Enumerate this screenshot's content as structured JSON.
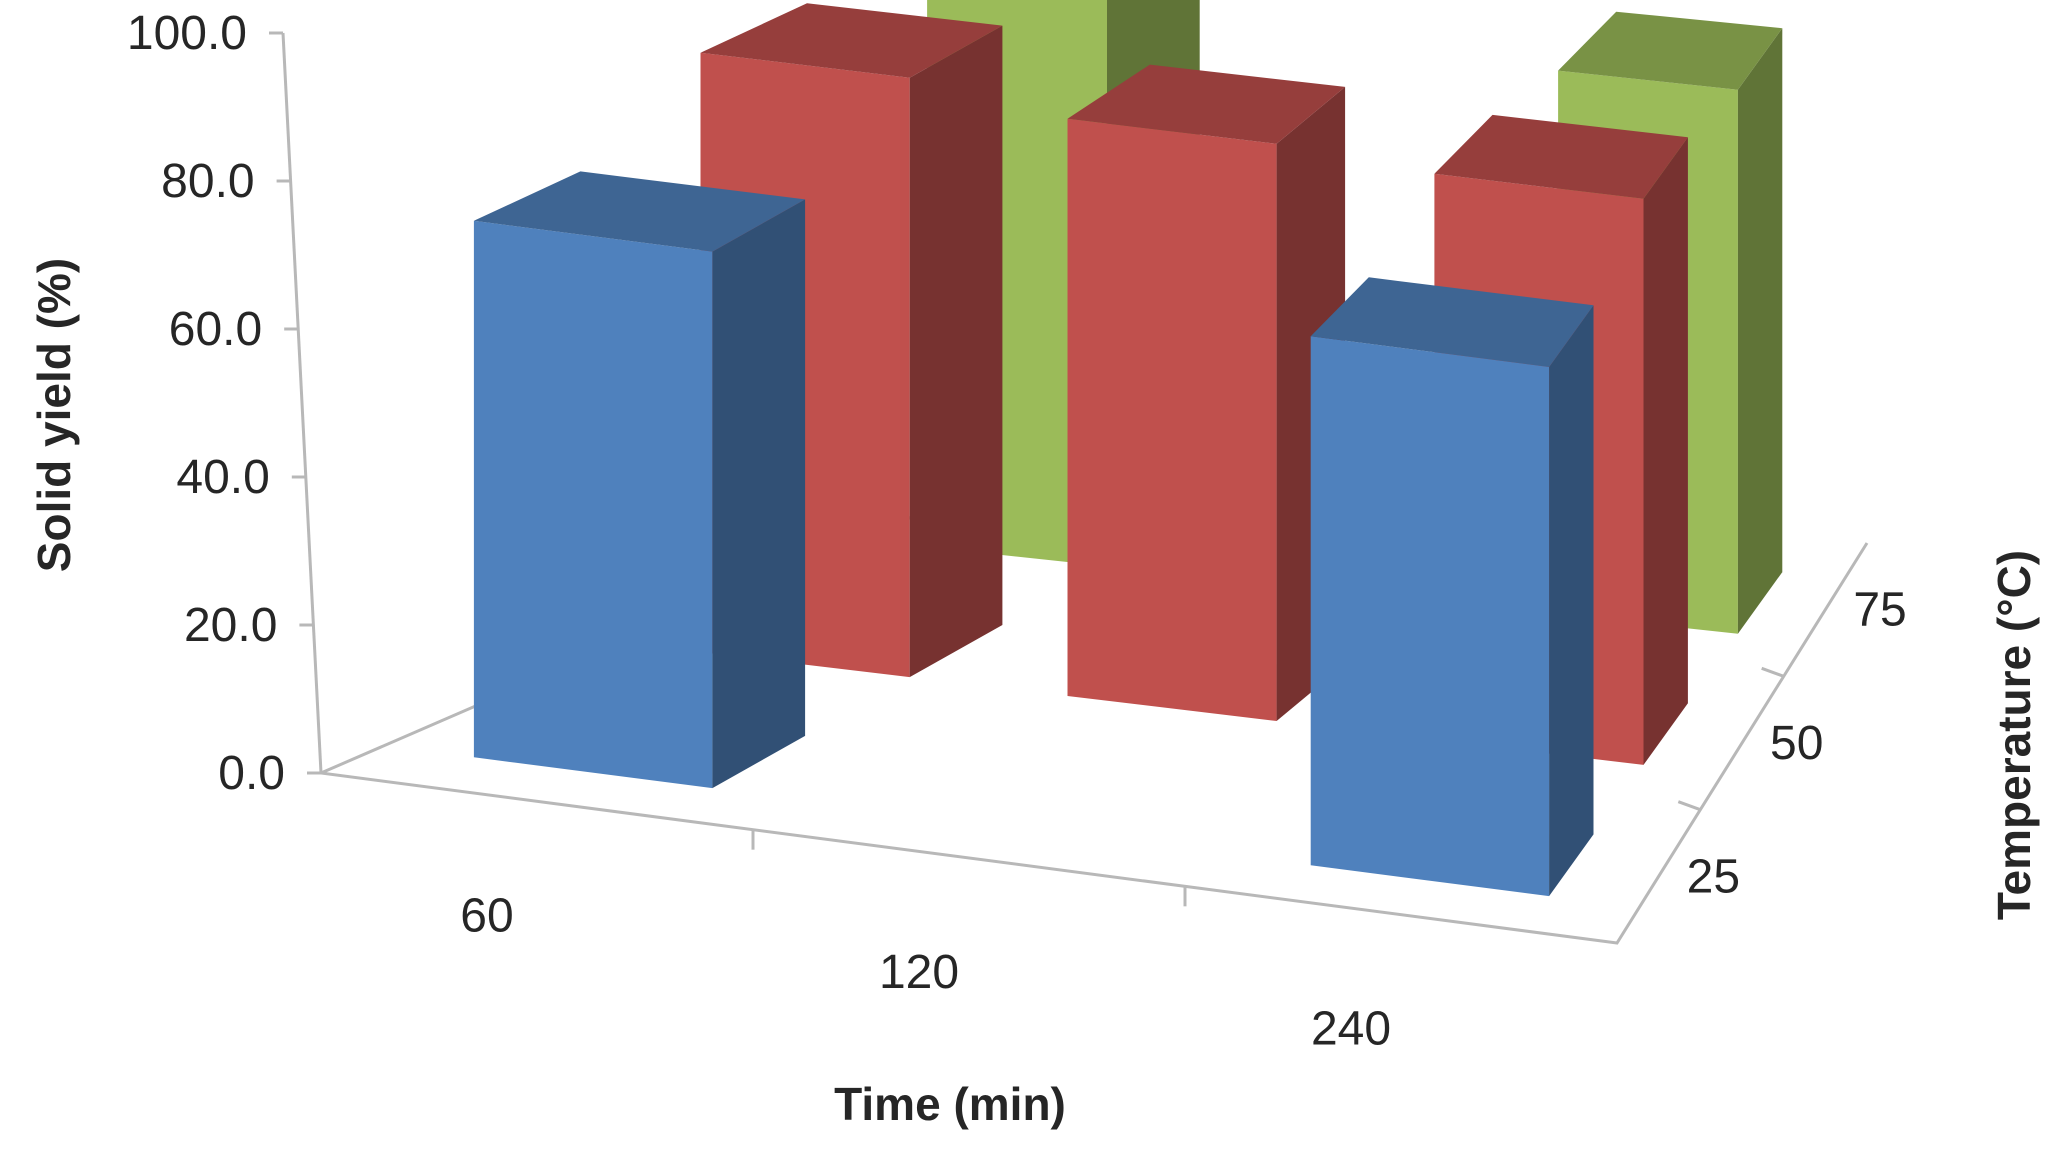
{
  "chart_data": {
    "type": "bar",
    "subtype": "3d-clustered-column",
    "title": "",
    "xlabel": "Time (min)",
    "ylabel": "Solid yield (%)",
    "zlabel": "Temperature (°C)",
    "categories": [
      "60",
      "120",
      "240"
    ],
    "depth_categories": [
      "25",
      "50",
      "75"
    ],
    "y_ticks": [
      "0.0",
      "20.0",
      "40.0",
      "60.0",
      "80.0",
      "100.0"
    ],
    "ylim": [
      0,
      100
    ],
    "grid": false,
    "legend": "none",
    "series": [
      {
        "name": "25",
        "color": "#4F81BD",
        "values": [
          72.5,
          null,
          71.5
        ]
      },
      {
        "name": "50",
        "color": "#C0504D",
        "values": [
          81.0,
          78.0,
          76.5
        ]
      },
      {
        "name": "75",
        "color": "#9BBB59",
        "values": [
          78.5,
          null,
          73.5
        ]
      }
    ]
  }
}
